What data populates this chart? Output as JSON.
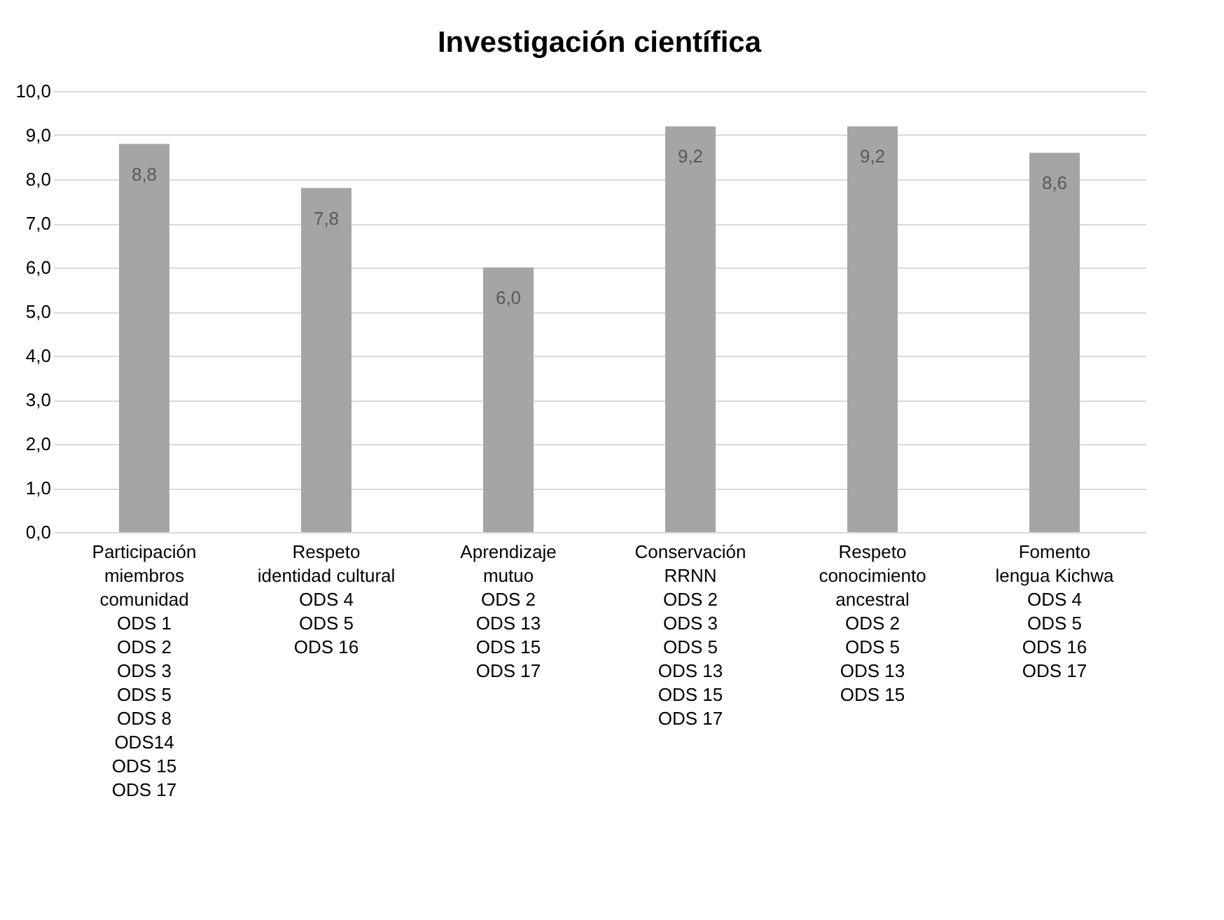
{
  "chart_data": {
    "type": "bar",
    "title": "Investigación científica",
    "categories": [
      "Participación\nmiembros\ncomunidad\nODS 1\nODS 2\nODS 3\nODS 5\nODS 8\nODS14\nODS 15\nODS 17",
      "Respeto\nidentidad cultural\nODS 4\nODS 5\nODS 16",
      "Aprendizaje\nmutuo\nODS 2\nODS 13\nODS 15\nODS 17",
      "Conservación\nRRNN\nODS 2\nODS 3\nODS 5\nODS 13\nODS 15\nODS 17",
      "Respeto\nconocimiento\nancestral\nODS 2\nODS 5\nODS 13\nODS 15",
      "Fomento\nlengua Kichwa\nODS 4\nODS 5\nODS 16\nODS 17"
    ],
    "values": [
      8.8,
      7.8,
      6.0,
      9.2,
      9.2,
      8.6
    ],
    "value_labels": [
      "8,8",
      "7,8",
      "6,0",
      "9,2",
      "9,2",
      "8,6"
    ],
    "color": "#a5a5a5",
    "ylim": [
      0,
      10
    ],
    "yticks": [
      {
        "value": 0,
        "label": "0,0"
      },
      {
        "value": 1,
        "label": "1,0"
      },
      {
        "value": 2,
        "label": "2,0"
      },
      {
        "value": 3,
        "label": "3,0"
      },
      {
        "value": 4,
        "label": "4,0"
      },
      {
        "value": 5,
        "label": "5,0"
      },
      {
        "value": 6,
        "label": "6,0"
      },
      {
        "value": 7,
        "label": "7,0"
      },
      {
        "value": 8,
        "label": "8,0"
      },
      {
        "value": 9,
        "label": "9,0"
      },
      {
        "value": 10,
        "label": "10,0"
      }
    ],
    "grid": true
  }
}
